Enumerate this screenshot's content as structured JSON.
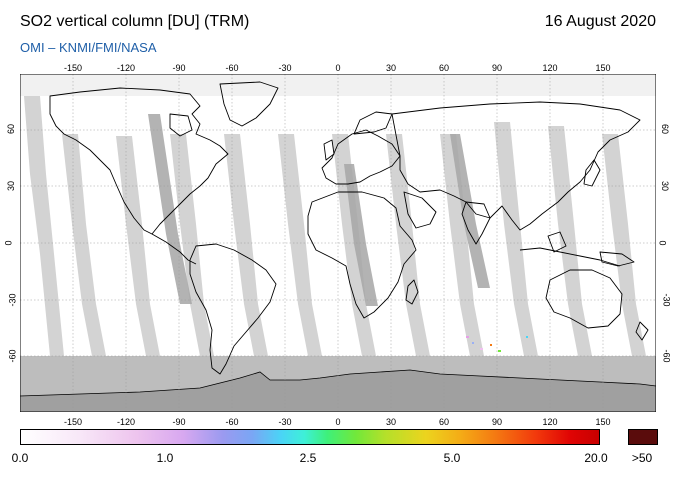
{
  "header": {
    "title": "SO2 vertical column [DU] (TRM)",
    "date": "16 August 2020",
    "subtitle": "OMI  –  KNMI/FMI/NASA"
  },
  "map": {
    "projection": "equirectangular",
    "lon_ticks": [
      "-150",
      "-120",
      "-90",
      "-60",
      "-30",
      "0",
      "30",
      "60",
      "90",
      "120",
      "150"
    ],
    "lat_ticks": [
      "60",
      "30",
      "0",
      "-30",
      "-60"
    ],
    "colors": {
      "ocean": "#ffffff",
      "land_outline": "#000000",
      "swath_gap": "#d3d3d3",
      "orbit_nadir": "#a6a6a6",
      "no_data_polar": "#bdbdbd",
      "antarctica": "#a0a0a0"
    }
  },
  "colorbar": {
    "labels": [
      "0.0",
      "1.0",
      "2.5",
      "5.0",
      "20.0"
    ],
    "overflow_label": ">50",
    "overflow_color": "#5a0c0c"
  }
}
